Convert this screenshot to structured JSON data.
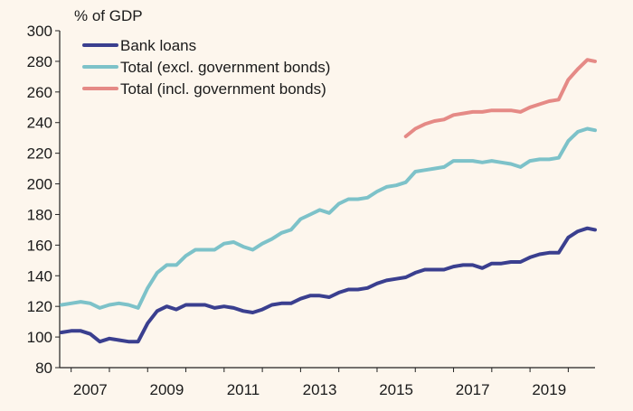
{
  "chart_data": {
    "type": "line",
    "ylabel": "% of GDP",
    "ylim": [
      80,
      300
    ],
    "yticks": [
      80,
      100,
      120,
      140,
      160,
      180,
      200,
      220,
      240,
      260,
      280,
      300
    ],
    "xlim": [
      2006.7,
      2020.7
    ],
    "xticks": [
      2007,
      2009,
      2011,
      2013,
      2015,
      2017,
      2019
    ],
    "xtick_labels": [
      "2007",
      "2009",
      "2011",
      "2013",
      "2015",
      "2017",
      "2019"
    ],
    "grid": false,
    "legend_position": "top-left",
    "series": [
      {
        "name": "Bank loans",
        "color": "#3a3f8f",
        "x": [
          2006.75,
          2007.0,
          2007.25,
          2007.5,
          2007.75,
          2008.0,
          2008.25,
          2008.5,
          2008.75,
          2009.0,
          2009.25,
          2009.5,
          2009.75,
          2010.0,
          2010.25,
          2010.5,
          2010.75,
          2011.0,
          2011.25,
          2011.5,
          2011.75,
          2012.0,
          2012.25,
          2012.5,
          2012.75,
          2013.0,
          2013.25,
          2013.5,
          2013.75,
          2014.0,
          2014.25,
          2014.5,
          2014.75,
          2015.0,
          2015.25,
          2015.5,
          2015.75,
          2016.0,
          2016.25,
          2016.5,
          2016.75,
          2017.0,
          2017.25,
          2017.5,
          2017.75,
          2018.0,
          2018.25,
          2018.5,
          2018.75,
          2019.0,
          2019.25,
          2019.5,
          2019.75,
          2020.0,
          2020.25,
          2020.5,
          2020.7
        ],
        "y": [
          103,
          104,
          104,
          102,
          97,
          99,
          98,
          97,
          97,
          109,
          117,
          120,
          118,
          121,
          121,
          121,
          119,
          120,
          119,
          117,
          116,
          118,
          121,
          122,
          122,
          125,
          127,
          127,
          126,
          129,
          131,
          131,
          132,
          135,
          137,
          138,
          139,
          142,
          144,
          144,
          144,
          146,
          147,
          147,
          145,
          148,
          148,
          149,
          149,
          152,
          154,
          155,
          155,
          165,
          169,
          171,
          170
        ]
      },
      {
        "name": "Total (excl. government bonds)",
        "color": "#7dc2c9",
        "x": [
          2006.75,
          2007.0,
          2007.25,
          2007.5,
          2007.75,
          2008.0,
          2008.25,
          2008.5,
          2008.75,
          2009.0,
          2009.25,
          2009.5,
          2009.75,
          2010.0,
          2010.25,
          2010.5,
          2010.75,
          2011.0,
          2011.25,
          2011.5,
          2011.75,
          2012.0,
          2012.25,
          2012.5,
          2012.75,
          2013.0,
          2013.25,
          2013.5,
          2013.75,
          2014.0,
          2014.25,
          2014.5,
          2014.75,
          2015.0,
          2015.25,
          2015.5,
          2015.75,
          2016.0,
          2016.25,
          2016.5,
          2016.75,
          2017.0,
          2017.25,
          2017.5,
          2017.75,
          2018.0,
          2018.25,
          2018.5,
          2018.75,
          2019.0,
          2019.25,
          2019.5,
          2019.75,
          2020.0,
          2020.25,
          2020.5,
          2020.7
        ],
        "y": [
          121,
          122,
          123,
          122,
          119,
          121,
          122,
          121,
          119,
          132,
          142,
          147,
          147,
          153,
          157,
          157,
          157,
          161,
          162,
          159,
          157,
          161,
          164,
          168,
          170,
          177,
          180,
          183,
          181,
          187,
          190,
          190,
          191,
          195,
          198,
          199,
          201,
          208,
          209,
          210,
          211,
          215,
          215,
          215,
          214,
          215,
          214,
          213,
          211,
          215,
          216,
          216,
          217,
          228,
          234,
          236,
          235
        ]
      },
      {
        "name": "Total (incl. government bonds)",
        "color": "#e58a86",
        "x": [
          2015.75,
          2016.0,
          2016.25,
          2016.5,
          2016.75,
          2017.0,
          2017.25,
          2017.5,
          2017.75,
          2018.0,
          2018.25,
          2018.5,
          2018.75,
          2019.0,
          2019.25,
          2019.5,
          2019.75,
          2020.0,
          2020.25,
          2020.5,
          2020.7
        ],
        "y": [
          231,
          236,
          239,
          241,
          242,
          245,
          246,
          247,
          247,
          248,
          248,
          248,
          247,
          250,
          252,
          254,
          255,
          268,
          275,
          281,
          280
        ]
      }
    ]
  }
}
